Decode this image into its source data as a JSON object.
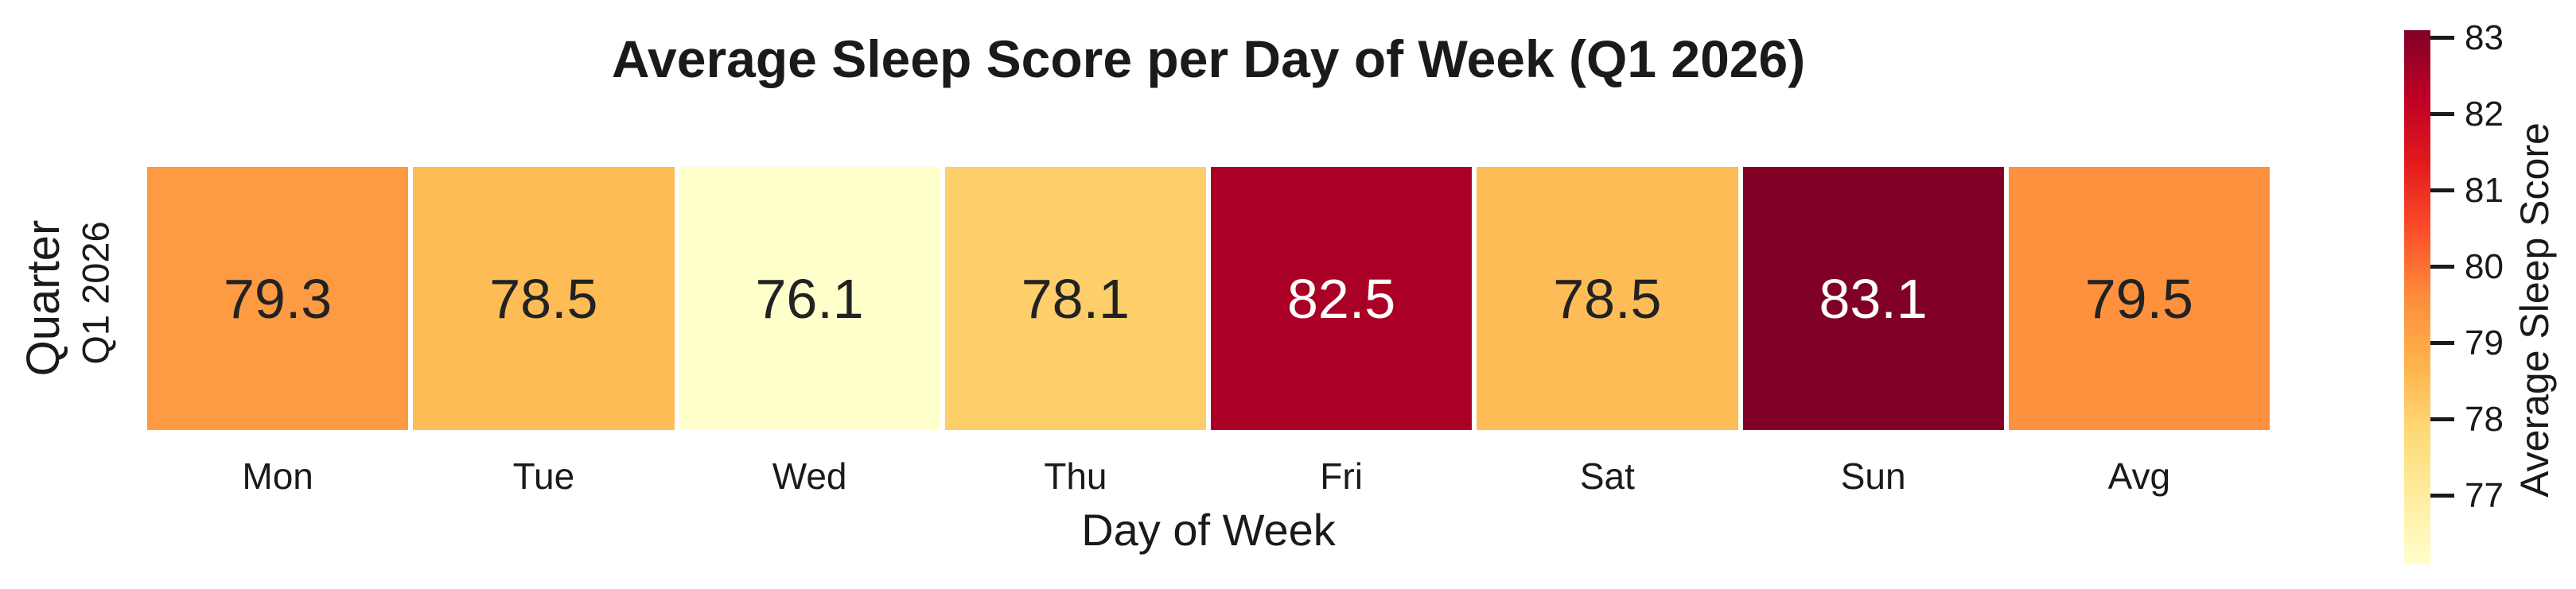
{
  "title": "Average Sleep Score per Day of Week (Q1 2026)",
  "axes": {
    "x_label": "Day of Week",
    "y_label": "Quarter",
    "y_tick": "Q1 2026"
  },
  "colorbar": {
    "label": "Average Sleep Score",
    "ticks": [
      77,
      78,
      79,
      80,
      81,
      82,
      83
    ],
    "min": 76.1,
    "max": 83.1,
    "gradient_top_to_bottom": [
      "#800026",
      "#BD0026",
      "#E31A1C",
      "#FC4E2A",
      "#FD8D3C",
      "#FEB24C",
      "#FED976",
      "#FFEDA0",
      "#FFFFCC"
    ]
  },
  "chart_data": {
    "type": "heatmap",
    "title": "Average Sleep Score per Day of Week (Q1 2026)",
    "xlabel": "Day of Week",
    "ylabel": "Quarter",
    "categories": [
      "Mon",
      "Tue",
      "Wed",
      "Thu",
      "Fri",
      "Sat",
      "Sun",
      "Avg"
    ],
    "rows": [
      "Q1 2026"
    ],
    "values": [
      [
        79.3,
        78.5,
        76.1,
        78.1,
        82.5,
        78.5,
        83.1,
        79.5
      ]
    ],
    "value_format": "1-decimal",
    "colormap": "YlOrRd",
    "vmin": 76.1,
    "vmax": 83.1,
    "colorbar_label": "Average Sleep Score",
    "colorbar_ticks": [
      77,
      78,
      79,
      80,
      81,
      82,
      83
    ],
    "cell_colors": [
      [
        "#FD9A42",
        "#FEBC57",
        "#FFFFCC",
        "#FECE6A",
        "#AA0026",
        "#FEBC57",
        "#800026",
        "#FD913E"
      ]
    ],
    "cell_text_colors": [
      [
        "#222222",
        "#222222",
        "#222222",
        "#222222",
        "#FFFFFF",
        "#222222",
        "#FFFFFF",
        "#222222"
      ]
    ],
    "grid": false,
    "legend_position": "right-colorbar",
    "annotations_shown": true
  },
  "colors": {
    "background": "#FFFFFF",
    "text": "#1A1A1A",
    "cell_gap": "#FFFFFF"
  }
}
